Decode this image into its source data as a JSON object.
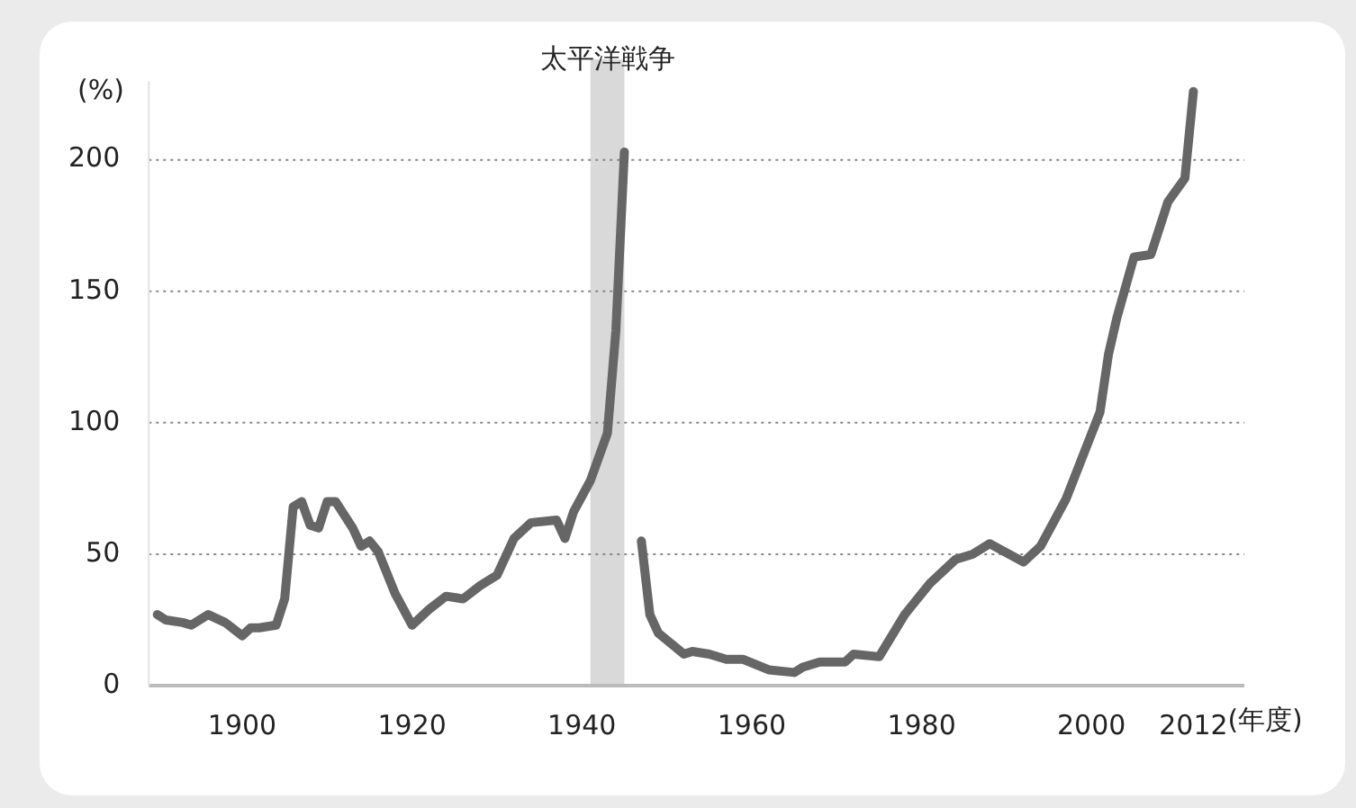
{
  "chart_data": {
    "type": "line",
    "ylabel": "(%)",
    "xlabel": "(年度)",
    "x": [
      1890,
      1891,
      1893,
      1894,
      1896,
      1898,
      1900,
      1901,
      1902,
      1904,
      1905,
      1906,
      1907,
      1908,
      1909,
      1910,
      1911,
      1913,
      1914,
      1915,
      1916,
      1918,
      1920,
      1922,
      1924,
      1926,
      1928,
      1930,
      1932,
      1934,
      1937,
      1938,
      1939,
      1941,
      1943,
      1944,
      1945,
      1946,
      1947,
      1948,
      1949,
      1952,
      1953,
      1955,
      1957,
      1959,
      1962,
      1965,
      1966,
      1968,
      1971,
      1972,
      1975,
      1978,
      1981,
      1984,
      1986,
      1988,
      1992,
      1994,
      1997,
      2001,
      2002,
      2003,
      2005,
      2007,
      2009,
      2011,
      2012
    ],
    "series": [
      {
        "color": "#666666",
        "values": [
          27,
          25,
          24,
          23,
          27,
          24,
          19,
          22,
          22,
          23,
          33,
          68,
          70,
          61,
          60,
          70,
          70,
          60,
          53,
          55,
          51,
          35,
          23,
          29,
          34,
          33,
          38,
          42,
          56,
          62,
          63,
          56,
          66,
          78,
          96,
          135,
          203,
          null,
          55,
          27,
          20,
          12,
          13,
          12,
          10,
          10,
          6,
          5,
          7,
          9,
          9,
          12,
          11,
          27,
          39,
          48,
          50,
          54,
          47,
          53,
          71,
          104,
          126,
          140,
          163,
          164,
          184,
          193,
          226
        ]
      }
    ],
    "xlim": [
      1889,
      2018
    ],
    "xticks": [
      1900,
      1920,
      1940,
      1960,
      1980,
      2000,
      2012
    ],
    "ylim": [
      0,
      230
    ],
    "yticks": [
      0,
      50,
      100,
      150,
      200
    ],
    "grid": "y",
    "line_style": "solid",
    "marker": "none",
    "legend": false,
    "bands": [
      {
        "axis": "x",
        "from": 1941,
        "to": 1945,
        "label": "太平洋戦争",
        "color": "#d9d9d9"
      }
    ]
  }
}
